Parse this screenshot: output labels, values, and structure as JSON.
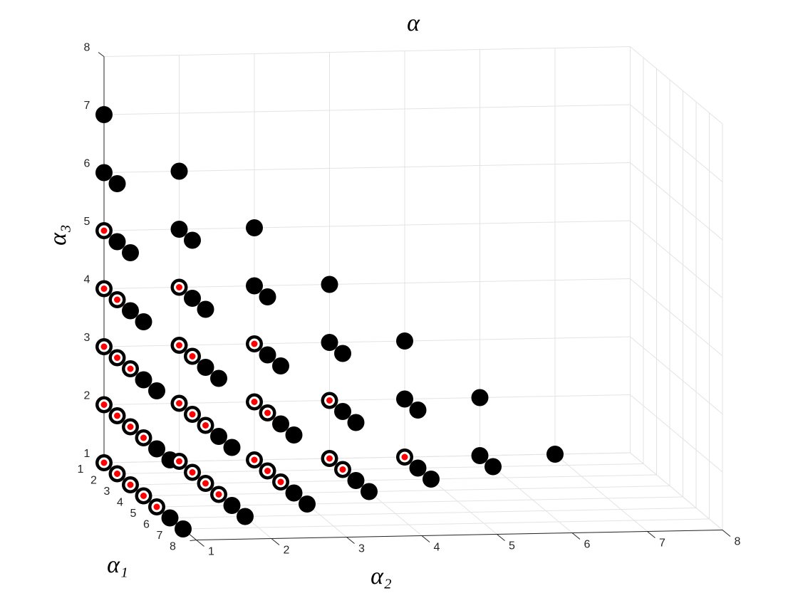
{
  "chart_data": {
    "type": "scatter3",
    "title": "α",
    "xlabel": "α₁",
    "ylabel": "α₂",
    "zlabel": "α₃",
    "xlim": [
      1,
      8
    ],
    "ylim": [
      1,
      8
    ],
    "zlim": [
      1,
      8
    ],
    "xticks": [
      1,
      2,
      3,
      4,
      5,
      6,
      7,
      8
    ],
    "yticks": [
      1,
      2,
      3,
      4,
      5,
      6,
      7,
      8
    ],
    "zticks": [
      1,
      2,
      3,
      4,
      5,
      6,
      7,
      8
    ],
    "grid": true,
    "series": [
      {
        "color": "#000000",
        "points": [
          [
            1,
            1,
            1
          ],
          [
            2,
            1,
            1
          ],
          [
            3,
            1,
            1
          ],
          [
            4,
            1,
            1
          ],
          [
            5,
            1,
            1
          ],
          [
            6,
            1,
            1
          ],
          [
            7,
            1,
            1
          ],
          [
            1,
            2,
            1
          ],
          [
            2,
            2,
            1
          ],
          [
            3,
            2,
            1
          ],
          [
            4,
            2,
            1
          ],
          [
            5,
            2,
            1
          ],
          [
            6,
            2,
            1
          ],
          [
            1,
            3,
            1
          ],
          [
            2,
            3,
            1
          ],
          [
            3,
            3,
            1
          ],
          [
            4,
            3,
            1
          ],
          [
            5,
            3,
            1
          ],
          [
            1,
            4,
            1
          ],
          [
            2,
            4,
            1
          ],
          [
            3,
            4,
            1
          ],
          [
            4,
            4,
            1
          ],
          [
            1,
            5,
            1
          ],
          [
            2,
            5,
            1
          ],
          [
            3,
            5,
            1
          ],
          [
            1,
            6,
            1
          ],
          [
            2,
            6,
            1
          ],
          [
            1,
            7,
            1
          ],
          [
            1,
            1,
            2
          ],
          [
            2,
            1,
            2
          ],
          [
            3,
            1,
            2
          ],
          [
            4,
            1,
            2
          ],
          [
            5,
            1,
            2
          ],
          [
            6,
            1,
            2
          ],
          [
            1,
            2,
            2
          ],
          [
            2,
            2,
            2
          ],
          [
            3,
            2,
            2
          ],
          [
            4,
            2,
            2
          ],
          [
            5,
            2,
            2
          ],
          [
            1,
            3,
            2
          ],
          [
            2,
            3,
            2
          ],
          [
            3,
            3,
            2
          ],
          [
            4,
            3,
            2
          ],
          [
            1,
            4,
            2
          ],
          [
            2,
            4,
            2
          ],
          [
            3,
            4,
            2
          ],
          [
            1,
            5,
            2
          ],
          [
            2,
            5,
            2
          ],
          [
            1,
            6,
            2
          ],
          [
            1,
            1,
            3
          ],
          [
            2,
            1,
            3
          ],
          [
            3,
            1,
            3
          ],
          [
            4,
            1,
            3
          ],
          [
            5,
            1,
            3
          ],
          [
            1,
            2,
            3
          ],
          [
            2,
            2,
            3
          ],
          [
            3,
            2,
            3
          ],
          [
            4,
            2,
            3
          ],
          [
            1,
            3,
            3
          ],
          [
            2,
            3,
            3
          ],
          [
            3,
            3,
            3
          ],
          [
            1,
            4,
            3
          ],
          [
            2,
            4,
            3
          ],
          [
            1,
            5,
            3
          ],
          [
            1,
            1,
            4
          ],
          [
            2,
            1,
            4
          ],
          [
            3,
            1,
            4
          ],
          [
            4,
            1,
            4
          ],
          [
            1,
            2,
            4
          ],
          [
            2,
            2,
            4
          ],
          [
            3,
            2,
            4
          ],
          [
            1,
            3,
            4
          ],
          [
            2,
            3,
            4
          ],
          [
            1,
            4,
            4
          ],
          [
            1,
            1,
            5
          ],
          [
            2,
            1,
            5
          ],
          [
            3,
            1,
            5
          ],
          [
            1,
            2,
            5
          ],
          [
            2,
            2,
            5
          ],
          [
            1,
            3,
            5
          ],
          [
            1,
            1,
            6
          ],
          [
            2,
            1,
            6
          ],
          [
            1,
            2,
            6
          ],
          [
            1,
            1,
            7
          ]
        ]
      },
      {
        "color": "#ff0000",
        "edgecolor": "#ffffff",
        "points": [
          [
            1,
            1,
            1
          ],
          [
            2,
            1,
            1
          ],
          [
            3,
            1,
            1
          ],
          [
            4,
            1,
            1
          ],
          [
            5,
            1,
            1
          ],
          [
            1,
            2,
            1
          ],
          [
            2,
            2,
            1
          ],
          [
            3,
            2,
            1
          ],
          [
            4,
            2,
            1
          ],
          [
            1,
            3,
            1
          ],
          [
            2,
            3,
            1
          ],
          [
            3,
            3,
            1
          ],
          [
            1,
            4,
            1
          ],
          [
            2,
            4,
            1
          ],
          [
            1,
            5,
            1
          ],
          [
            1,
            1,
            2
          ],
          [
            2,
            1,
            2
          ],
          [
            3,
            1,
            2
          ],
          [
            4,
            1,
            2
          ],
          [
            1,
            2,
            2
          ],
          [
            2,
            2,
            2
          ],
          [
            3,
            2,
            2
          ],
          [
            1,
            3,
            2
          ],
          [
            2,
            3,
            2
          ],
          [
            1,
            4,
            2
          ],
          [
            1,
            1,
            3
          ],
          [
            2,
            1,
            3
          ],
          [
            3,
            1,
            3
          ],
          [
            1,
            2,
            3
          ],
          [
            2,
            2,
            3
          ],
          [
            1,
            3,
            3
          ],
          [
            1,
            1,
            4
          ],
          [
            2,
            1,
            4
          ],
          [
            1,
            2,
            4
          ],
          [
            1,
            1,
            5
          ]
        ]
      }
    ]
  }
}
